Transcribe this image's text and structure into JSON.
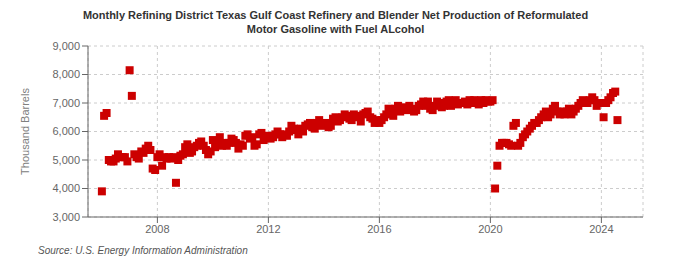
{
  "chart_data": {
    "type": "scatter",
    "title": "Monthly Refining District Texas Gulf Coast Refinery and Blender Net Production of Reformulated\nMotor Gasoline with Fuel ALcohol",
    "y_label": "Thousand Barrels",
    "annotations": [
      "Source: U.S. Energy Information Administration"
    ],
    "color": "#cc0000",
    "marker": "square",
    "grid": true,
    "xlim": [
      2005.5,
      2025.5
    ],
    "xticks": [
      2008,
      2012,
      2016,
      2020,
      2024
    ],
    "ylim": [
      3000,
      9000
    ],
    "yticks": [
      {
        "value": 3000,
        "label": "3,000"
      },
      {
        "value": 4000,
        "label": "4,000"
      },
      {
        "value": 5000,
        "label": "5,000"
      },
      {
        "value": 6000,
        "label": "6,000"
      },
      {
        "value": 7000,
        "label": "7,000"
      },
      {
        "value": 8000,
        "label": "8,000"
      },
      {
        "value": 9000,
        "label": "9,000"
      }
    ],
    "x": [
      2006.0,
      2006.08,
      2006.17,
      2006.25,
      2006.33,
      2006.42,
      2006.5,
      2006.58,
      2006.67,
      2006.75,
      2006.83,
      2006.92,
      2007.0,
      2007.08,
      2007.17,
      2007.25,
      2007.33,
      2007.42,
      2007.5,
      2007.58,
      2007.67,
      2007.75,
      2007.83,
      2007.92,
      2008.0,
      2008.08,
      2008.17,
      2008.25,
      2008.33,
      2008.42,
      2008.5,
      2008.58,
      2008.67,
      2008.75,
      2008.83,
      2008.92,
      2009.0,
      2009.08,
      2009.17,
      2009.25,
      2009.33,
      2009.42,
      2009.5,
      2009.58,
      2009.67,
      2009.75,
      2009.83,
      2009.92,
      2010.0,
      2010.08,
      2010.17,
      2010.25,
      2010.33,
      2010.42,
      2010.5,
      2010.58,
      2010.67,
      2010.75,
      2010.83,
      2010.92,
      2011.0,
      2011.08,
      2011.17,
      2011.25,
      2011.33,
      2011.42,
      2011.5,
      2011.58,
      2011.67,
      2011.75,
      2011.83,
      2011.92,
      2012.0,
      2012.08,
      2012.17,
      2012.25,
      2012.33,
      2012.42,
      2012.5,
      2012.58,
      2012.67,
      2012.75,
      2012.83,
      2012.92,
      2013.0,
      2013.08,
      2013.17,
      2013.25,
      2013.33,
      2013.42,
      2013.5,
      2013.58,
      2013.67,
      2013.75,
      2013.83,
      2013.92,
      2014.0,
      2014.08,
      2014.17,
      2014.25,
      2014.33,
      2014.42,
      2014.5,
      2014.58,
      2014.67,
      2014.75,
      2014.83,
      2014.92,
      2015.0,
      2015.08,
      2015.17,
      2015.25,
      2015.33,
      2015.42,
      2015.5,
      2015.58,
      2015.67,
      2015.75,
      2015.83,
      2015.92,
      2016.0,
      2016.08,
      2016.17,
      2016.25,
      2016.33,
      2016.42,
      2016.5,
      2016.58,
      2016.67,
      2016.75,
      2016.83,
      2016.92,
      2017.0,
      2017.08,
      2017.17,
      2017.25,
      2017.33,
      2017.42,
      2017.5,
      2017.58,
      2017.67,
      2017.75,
      2017.83,
      2017.92,
      2018.0,
      2018.08,
      2018.17,
      2018.25,
      2018.33,
      2018.42,
      2018.5,
      2018.58,
      2018.67,
      2018.75,
      2018.83,
      2018.92,
      2019.0,
      2019.08,
      2019.17,
      2019.25,
      2019.33,
      2019.42,
      2019.5,
      2019.58,
      2019.67,
      2019.75,
      2019.83,
      2019.92,
      2020.0,
      2020.08,
      2020.17,
      2020.25,
      2020.33,
      2020.42,
      2020.5,
      2020.58,
      2020.67,
      2020.75,
      2020.83,
      2020.92,
      2021.0,
      2021.08,
      2021.17,
      2021.25,
      2021.33,
      2021.42,
      2021.5,
      2021.58,
      2021.67,
      2021.75,
      2021.83,
      2021.92,
      2022.0,
      2022.08,
      2022.17,
      2022.25,
      2022.33,
      2022.42,
      2022.5,
      2022.58,
      2022.67,
      2022.75,
      2022.83,
      2022.92,
      2023.0,
      2023.08,
      2023.17,
      2023.25,
      2023.33,
      2023.42,
      2023.5,
      2023.58,
      2023.67,
      2023.75,
      2023.83,
      2023.92,
      2024.0,
      2024.08,
      2024.17,
      2024.25,
      2024.33,
      2024.42,
      2024.5,
      2024.58
    ],
    "values": [
      3900,
      6550,
      6650,
      5000,
      4950,
      4950,
      5050,
      5200,
      5100,
      5100,
      5100,
      4950,
      8150,
      7250,
      5200,
      5100,
      5050,
      5300,
      5250,
      5400,
      5500,
      5350,
      4700,
      4650,
      5100,
      5200,
      4800,
      5100,
      5050,
      5100,
      5050,
      5100,
      4200,
      5000,
      5150,
      5200,
      5450,
      5550,
      5250,
      5300,
      5450,
      5500,
      5600,
      5650,
      5500,
      5350,
      5200,
      5300,
      5700,
      5450,
      5650,
      5800,
      5500,
      5600,
      5500,
      5600,
      5750,
      5700,
      5600,
      5400,
      5550,
      5500,
      5850,
      5900,
      5750,
      5800,
      5500,
      5550,
      5900,
      5950,
      5700,
      5800,
      5850,
      5750,
      5800,
      5900,
      6000,
      5900,
      5800,
      5900,
      5850,
      6000,
      6200,
      6100,
      6050,
      5900,
      6100,
      6000,
      6200,
      6250,
      6300,
      6150,
      6100,
      6300,
      6400,
      6200,
      6250,
      6300,
      6150,
      6200,
      6450,
      6500,
      6350,
      6400,
      6500,
      6600,
      6550,
      6450,
      6400,
      6600,
      6550,
      6500,
      6350,
      6600,
      6650,
      6700,
      6500,
      6450,
      6300,
      6400,
      6300,
      6400,
      6500,
      6600,
      6800,
      6700,
      6550,
      6800,
      6900,
      6700,
      6800,
      6850,
      6750,
      6900,
      6800,
      6700,
      6750,
      6900,
      6950,
      7050,
      6900,
      7050,
      6800,
      6750,
      6900,
      7050,
      7000,
      6850,
      6900,
      7050,
      7100,
      6900,
      7000,
      7100,
      6950,
      7000,
      7000,
      7050,
      6950,
      7100,
      7000,
      7100,
      7050,
      6950,
      7100,
      7000,
      7100,
      7050,
      7050,
      7100,
      4000,
      4800,
      5500,
      5600,
      5600,
      5600,
      5550,
      5500,
      6200,
      6300,
      5500,
      5600,
      5800,
      5900,
      6000,
      6100,
      6200,
      6300,
      6300,
      6400,
      6500,
      6600,
      6700,
      6500,
      6600,
      6800,
      6900,
      6700,
      6600,
      6700,
      6600,
      6700,
      6800,
      6600,
      6700,
      6800,
      6900,
      7000,
      7100,
      7050,
      7000,
      7100,
      7200,
      7100,
      6900,
      7000,
      7000,
      6500,
      7000,
      7100,
      7200,
      7350,
      7400,
      6400
    ]
  }
}
